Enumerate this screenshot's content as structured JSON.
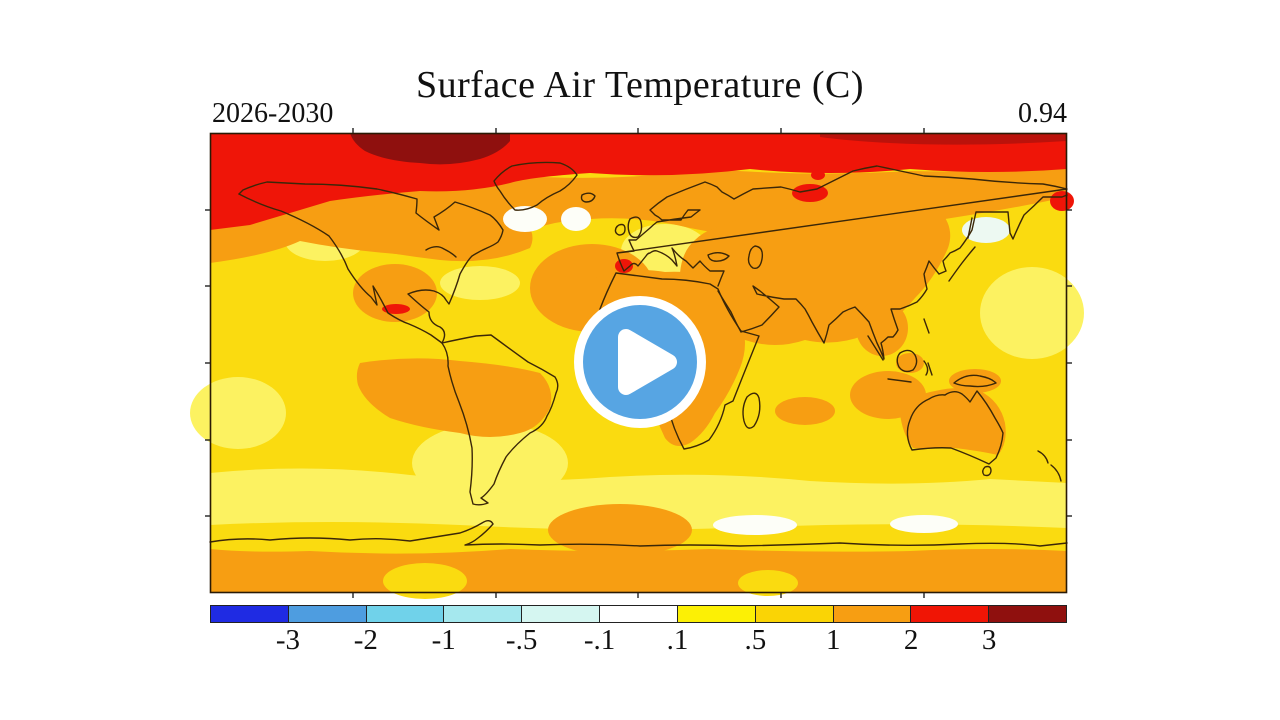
{
  "header": {
    "title": "Surface Air Temperature (C)",
    "period": "2026-2030",
    "global_mean": "0.94"
  },
  "player": {
    "play_icon": "play-triangle"
  },
  "colors": {
    "yellow": "#FADB10",
    "light_yellow": "#FCF261",
    "orange": "#F79E12",
    "red": "#EF1508",
    "dark_red": "#8F100E",
    "white_patch": "#FDFEF8",
    "cool_patch": "#EDF9F2",
    "coast": "#3B2708",
    "frame": "#2A1A05",
    "play_blue": "#57A5E3"
  },
  "chart_data": {
    "type": "heatmap",
    "title": "Surface Air Temperature (C)",
    "period_label": "2026-2030",
    "global_mean_value": 0.94,
    "units": "C",
    "projection": "equirectangular world map (180W-180E, 90N-90S)",
    "legend_position": "bottom",
    "colorbar": {
      "levels": [
        -3,
        -2,
        -1,
        -0.5,
        -0.1,
        0.1,
        0.5,
        1,
        2,
        3
      ],
      "tick_labels": [
        "-3",
        "-2",
        "-1",
        "-.5",
        "-.1",
        ".1",
        ".5",
        "1",
        "2",
        "3"
      ],
      "colors": [
        "#1F2BE3",
        "#4E9DE0",
        "#70D2EA",
        "#A5E8EE",
        "#D5F6F1",
        "#FFFFFF",
        "#FCF005",
        "#FAD405",
        "#F79E12",
        "#F01505",
        "#8F100E"
      ]
    },
    "regions": [
      {
        "region": "Arctic band (roughly north of 65N)",
        "anomaly_band_C": "2 to 3",
        "color": "red"
      },
      {
        "region": "Canadian Arctic Archipelago / NW Greenland",
        "anomaly_band_C": "> 3",
        "color": "dark red"
      },
      {
        "region": "Canada, Siberia, Central Asia, N Atlantic subtropics",
        "anomaly_band_C": "1 to 2",
        "color": "orange"
      },
      {
        "region": "Africa, Middle East, India, Amazon, Australia, Antarctica interior",
        "anomaly_band_C": "1 to 2",
        "color": "orange"
      },
      {
        "region": "Most mid- and low-latitude oceans",
        "anomaly_band_C": "0.5 to 1",
        "color": "yellow"
      },
      {
        "region": "Southern Ocean band, W Europe, E China, NE Pacific patches",
        "anomaly_band_C": "0.1 to 0.5",
        "color": "pale yellow"
      },
      {
        "region": "N Atlantic south of Greenland, NW Pacific near Kamchatka, Antarctic coast spots",
        "anomaly_band_C": "-0.1 to 0.1",
        "color": "white"
      },
      {
        "region": "Small spots in Siberia, Iberia/Morocco, Mexico, far NE Pacific",
        "anomaly_band_C": "2 to 3",
        "color": "red"
      }
    ]
  }
}
